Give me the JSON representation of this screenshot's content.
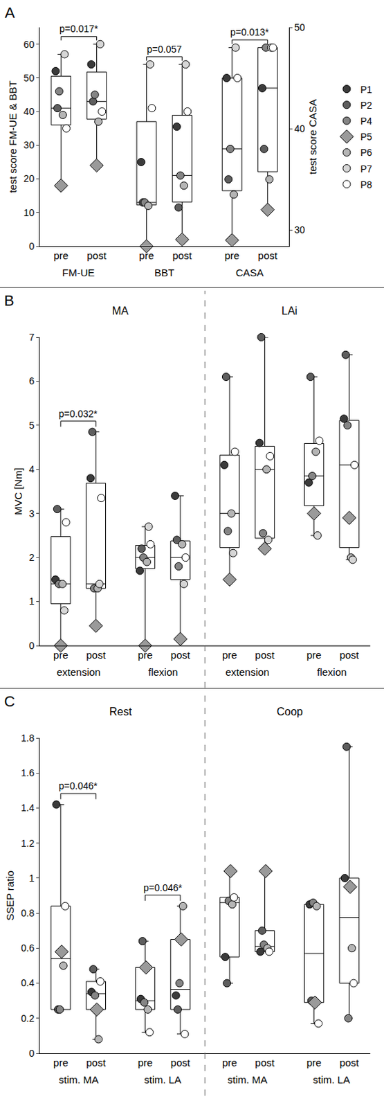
{
  "chart_data": [
    {
      "type": "box",
      "panel_label": "A",
      "ylabel": "test score FM-UE & BBT",
      "y2label": "test score CASA",
      "ylim": [
        0,
        65
      ],
      "yticks": [
        0,
        10,
        20,
        30,
        40,
        50,
        60
      ],
      "y2lim": [
        28.4,
        50
      ],
      "y2ticks": [
        30,
        40,
        50
      ],
      "grid": false,
      "legend": "right",
      "groups": [
        {
          "name": "FM-UE",
          "categories": [
            "pre",
            "post"
          ],
          "p_value": "p=0.017*"
        },
        {
          "name": "BBT",
          "categories": [
            "pre",
            "post"
          ],
          "p_value": "p=0.057"
        },
        {
          "name": "CASA",
          "categories": [
            "pre",
            "post"
          ],
          "p_value": "p=0.013*",
          "axis": "y2"
        }
      ],
      "series": [
        {
          "name": "P1",
          "color": "#3b3b3b",
          "marker": "circle",
          "values": [
            52,
            54,
            25,
            35.5,
            45,
            44
          ]
        },
        {
          "name": "P2",
          "color": "#5e5e5e",
          "marker": "circle",
          "values": [
            41,
            43,
            13,
            11.5,
            35,
            38
          ]
        },
        {
          "name": "P4",
          "color": "#858585",
          "marker": "circle",
          "values": [
            46,
            45,
            13,
            21,
            38,
            48
          ]
        },
        {
          "name": "P5",
          "color": "#9a9a9a",
          "marker": "diamond",
          "values": [
            18,
            24,
            0,
            2,
            29,
            32
          ]
        },
        {
          "name": "P6",
          "color": "#b5b5b5",
          "marker": "circle",
          "values": [
            39,
            37,
            12,
            18,
            33.5,
            35
          ]
        },
        {
          "name": "P7",
          "color": "#d6d6d6",
          "marker": "circle",
          "values": [
            57,
            60,
            54,
            54,
            48,
            48
          ]
        },
        {
          "name": "P8",
          "color": "#ffffff",
          "marker": "circle",
          "values": [
            35,
            40,
            41,
            40,
            45,
            48
          ]
        }
      ]
    },
    {
      "type": "box",
      "panel_label": "B",
      "ylabel": "MVC [Nm]",
      "ylim": [
        0,
        7
      ],
      "yticks": [
        0,
        1,
        2,
        3,
        4,
        5,
        6,
        7
      ],
      "grid": false,
      "groups": [
        {
          "name": "extension",
          "section": "MA",
          "categories": [
            "pre",
            "post"
          ],
          "p_value": "p=0.032*"
        },
        {
          "name": "flexion",
          "section": "MA",
          "categories": [
            "pre",
            "post"
          ]
        },
        {
          "name": "extension",
          "section": "LAi",
          "categories": [
            "pre",
            "post"
          ]
        },
        {
          "name": "flexion",
          "section": "LAi",
          "categories": [
            "pre",
            "post"
          ]
        }
      ],
      "series": [
        {
          "name": "P1",
          "color": "#3b3b3b",
          "marker": "circle",
          "values": [
            1.5,
            3.8,
            1.7,
            3.4,
            4.1,
            4.6,
            3.7,
            5.15
          ]
        },
        {
          "name": "P2",
          "color": "#5e5e5e",
          "marker": "circle",
          "values": [
            3.1,
            4.85,
            2.2,
            2.4,
            6.1,
            7.0,
            6.1,
            6.6
          ]
        },
        {
          "name": "P4",
          "color": "#858585",
          "marker": "circle",
          "values": [
            1.4,
            1.3,
            2.0,
            1.8,
            2.6,
            2.55,
            3.85,
            5.0
          ]
        },
        {
          "name": "P5",
          "color": "#9a9a9a",
          "marker": "diamond",
          "values": [
            0,
            0.45,
            0,
            0.15,
            1.5,
            2.2,
            3.0,
            2.9
          ]
        },
        {
          "name": "P6",
          "color": "#b5b5b5",
          "marker": "circle",
          "values": [
            1.4,
            1.3,
            1.9,
            2.3,
            3.0,
            4.0,
            4.4,
            2.0
          ]
        },
        {
          "name": "P7",
          "color": "#d6d6d6",
          "marker": "circle",
          "values": [
            0.8,
            1.4,
            2.7,
            1.4,
            2.1,
            2.4,
            2.5,
            1.95
          ]
        },
        {
          "name": "P8",
          "color": "#ffffff",
          "marker": "circle",
          "values": [
            2.8,
            3.35,
            2.3,
            2.0,
            4.4,
            4.3,
            4.65,
            4.1
          ]
        }
      ]
    },
    {
      "type": "box",
      "panel_label": "C",
      "ylabel": "SSEP ratio",
      "ylim": [
        0,
        1.8
      ],
      "yticks": [
        0,
        0.2,
        0.4,
        0.6,
        0.8,
        1,
        1.2,
        1.4,
        1.6,
        1.8
      ],
      "grid": false,
      "groups": [
        {
          "name": "stim. MA",
          "section": "Rest",
          "categories": [
            "pre",
            "post"
          ],
          "p_value": "p=0.046*"
        },
        {
          "name": "stim. LA",
          "section": "Rest",
          "categories": [
            "pre",
            "post"
          ],
          "p_value": "p=0.046*"
        },
        {
          "name": "stim. MA",
          "section": "Coop",
          "categories": [
            "pre",
            "post"
          ]
        },
        {
          "name": "stim. LA",
          "section": "Coop",
          "categories": [
            "pre",
            "post"
          ]
        }
      ],
      "series": [
        {
          "name": "P1",
          "color": "#3b3b3b",
          "marker": "circle",
          "values": [
            1.42,
            0.35,
            0.31,
            0.33,
            0.55,
            0.58,
            0.85,
            1.0
          ]
        },
        {
          "name": "P2",
          "color": "#5e5e5e",
          "marker": "circle",
          "values": [
            0.25,
            0.48,
            0.64,
            0.25,
            0.4,
            0.7,
            0.3,
            1.75
          ]
        },
        {
          "name": "P4",
          "color": "#858585",
          "marker": "circle",
          "values": [
            0.25,
            0.33,
            0.29,
            0.4,
            0.87,
            0.62,
            0.86,
            0.2
          ]
        },
        {
          "name": "P5",
          "color": "#9a9a9a",
          "marker": "diamond",
          "values": [
            0.58,
            0.25,
            0.49,
            0.65,
            1.04,
            1.04,
            0.29,
            0.95
          ]
        },
        {
          "name": "P6",
          "color": "#b5b5b5",
          "marker": "circle",
          "values": [
            0.5,
            0.08,
            0.25,
            0.84,
            0.85,
            0.6,
            0.84,
            0.6
          ]
        },
        {
          "name": "P8",
          "color": "#ffffff",
          "marker": "circle",
          "values": [
            0.84,
            0.41,
            0.12,
            0.11,
            0.89,
            0.58,
            0.17,
            0.4
          ]
        }
      ]
    }
  ]
}
